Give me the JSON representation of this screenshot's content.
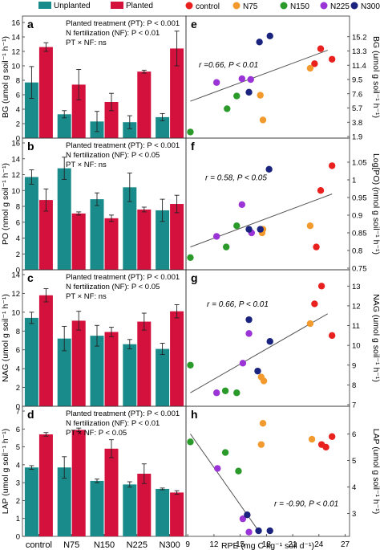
{
  "colors": {
    "unplanted": "#1a8b8b",
    "planted": "#d4103c",
    "control": "#e8211f",
    "N75": "#f39a2e",
    "N150": "#2a9a2a",
    "N225": "#9b34d6",
    "N300": "#1a237e",
    "axis": "#333333",
    "fit_line": "#555555"
  },
  "legend_bar": {
    "unplanted": "Unplanted",
    "planted": "Planted"
  },
  "legend_scatter": [
    "control",
    "N75",
    "N150",
    "N225",
    "N300"
  ],
  "scatter_x_label": "RPE (mg C kg⁻¹ soil d⁻¹)",
  "chart_data": [
    {
      "panel": "a",
      "type": "bar",
      "ylabel": "BG (umol g soil⁻¹ h⁻¹)",
      "categories": [
        "control",
        "N75",
        "N150",
        "N225",
        "N300"
      ],
      "ylim": [
        0,
        16
      ],
      "yticks": [
        0,
        2,
        4,
        6,
        8,
        10,
        12,
        14,
        16
      ],
      "series": [
        {
          "name": "Unplanted",
          "values": [
            7.7,
            3.3,
            2.3,
            2.2,
            2.9
          ],
          "err": [
            2.2,
            0.5,
            1.4,
            0.9,
            0.5
          ]
        },
        {
          "name": "Planted",
          "values": [
            12.6,
            7.4,
            5.0,
            9.2,
            12.4
          ],
          "err": [
            0.6,
            2.1,
            1.2,
            0.2,
            2.4
          ]
        }
      ],
      "stats": [
        "Planted treatment (PT): P < 0.001",
        "N fertilization (NF): P < 0.01",
        "PT × NF: ns"
      ]
    },
    {
      "panel": "b",
      "type": "bar",
      "ylabel": "PO (nmol g soil⁻¹ h⁻¹)",
      "categories": [
        "control",
        "N75",
        "N150",
        "N225",
        "N300"
      ],
      "ylim": [
        0,
        16
      ],
      "yticks": [
        0,
        2,
        4,
        6,
        8,
        10,
        12,
        14,
        16
      ],
      "series": [
        {
          "name": "Unplanted",
          "values": [
            11.7,
            12.8,
            8.9,
            10.4,
            7.5
          ],
          "err": [
            0.9,
            1.4,
            0.8,
            1.8,
            1.4
          ]
        },
        {
          "name": "Planted",
          "values": [
            8.8,
            7.1,
            6.5,
            7.6,
            8.3
          ],
          "err": [
            1.4,
            0.2,
            0.4,
            0.3,
            1.1
          ]
        }
      ],
      "stats": [
        "Planted treatment (PT): P < 0.001",
        "N fertilization (NF): P < 0.05",
        "PT × NF: ns"
      ]
    },
    {
      "panel": "c",
      "type": "bar",
      "ylabel": "NAG (umol g soil⁻¹ h⁻¹)",
      "categories": [
        "control",
        "N75",
        "N150",
        "N225",
        "N300"
      ],
      "ylim": [
        0,
        14
      ],
      "yticks": [
        0,
        2,
        4,
        6,
        8,
        10,
        12,
        14
      ],
      "series": [
        {
          "name": "Unplanted",
          "values": [
            9.4,
            7.2,
            7.5,
            6.6,
            6.1
          ],
          "err": [
            0.6,
            1.3,
            1.1,
            0.5,
            0.6
          ]
        },
        {
          "name": "Planted",
          "values": [
            11.8,
            9.1,
            7.9,
            9.0,
            10.1
          ],
          "err": [
            0.7,
            1.0,
            0.5,
            0.9,
            0.7
          ]
        }
      ],
      "stats": [
        "Planted treatment (PT): P < 0.001",
        "N fertilization (NF): P < 0.05",
        "PT × NF: ns"
      ]
    },
    {
      "panel": "d",
      "type": "bar",
      "ylabel": "LAP (umol g soil⁻¹ h⁻¹)",
      "categories": [
        "control",
        "N75",
        "N150",
        "N225",
        "N300"
      ],
      "ylim": [
        0,
        7
      ],
      "yticks": [
        0,
        1,
        2,
        3,
        4,
        5,
        6,
        7
      ],
      "series": [
        {
          "name": "Unplanted",
          "values": [
            3.85,
            3.85,
            3.1,
            2.9,
            2.65
          ],
          "err": [
            0.1,
            0.6,
            0.1,
            0.15,
            0.05
          ]
        },
        {
          "name": "Planted",
          "values": [
            5.7,
            5.95,
            4.9,
            3.5,
            2.45
          ],
          "err": [
            0.1,
            0.1,
            0.5,
            0.55,
            0.1
          ]
        }
      ],
      "stats": [
        "Planted treatment (PT): P < 0.001",
        "N fertilization (NF): P < 0.01",
        "PT × NF: P < 0.05"
      ]
    },
    {
      "panel": "e",
      "type": "scatter",
      "ylabel": "BG (umol g soil⁻¹ h⁻¹)",
      "ylim": [
        1.9,
        17.1
      ],
      "yticks": [
        1.9,
        3.8,
        5.7,
        7.6,
        9.5,
        11.4,
        13.3,
        15.2
      ],
      "annotation": "r =0.66, P < 0.01",
      "fit": [
        [
          9.3,
          6.6
        ],
        [
          25.0,
          13.4
        ]
      ],
      "points": [
        {
          "group": "control",
          "x": 24.2,
          "y": 13.6
        },
        {
          "group": "control",
          "x": 23.5,
          "y": 11.6
        },
        {
          "group": "control",
          "x": 25.5,
          "y": 12.2
        },
        {
          "group": "N75",
          "x": 17.3,
          "y": 7.4
        },
        {
          "group": "N75",
          "x": 17.6,
          "y": 4.1
        },
        {
          "group": "N75",
          "x": 23.0,
          "y": 11.0
        },
        {
          "group": "N150",
          "x": 9.3,
          "y": 2.5
        },
        {
          "group": "N150",
          "x": 13.5,
          "y": 5.6
        },
        {
          "group": "N150",
          "x": 14.6,
          "y": 7.3
        },
        {
          "group": "N225",
          "x": 12.3,
          "y": 9.1
        },
        {
          "group": "N225",
          "x": 15.2,
          "y": 9.6
        },
        {
          "group": "N225",
          "x": 16.2,
          "y": 9.5
        },
        {
          "group": "N300",
          "x": 16.0,
          "y": 7.8
        },
        {
          "group": "N300",
          "x": 17.2,
          "y": 14.5
        },
        {
          "group": "N300",
          "x": 18.4,
          "y": 15.3
        }
      ]
    },
    {
      "panel": "f",
      "type": "scatter",
      "ylabel": "Log[PO) (nmol g soil⁻¹ h⁻¹)",
      "ylim": [
        0.75,
        1.1
      ],
      "yticks": [
        0.75,
        0.8,
        0.85,
        0.9,
        0.95,
        1.0,
        1.05
      ],
      "annotation": "r = 0.58, P < 0.05",
      "fit": [
        [
          9.3,
          0.81
        ],
        [
          25.5,
          0.96
        ]
      ],
      "points": [
        {
          "group": "control",
          "x": 25.5,
          "y": 1.04
        },
        {
          "group": "control",
          "x": 24.2,
          "y": 0.97
        },
        {
          "group": "control",
          "x": 23.7,
          "y": 0.81
        },
        {
          "group": "N75",
          "x": 17.5,
          "y": 0.85
        },
        {
          "group": "N75",
          "x": 17.6,
          "y": 0.86
        },
        {
          "group": "N75",
          "x": 23.0,
          "y": 0.87
        },
        {
          "group": "N150",
          "x": 9.3,
          "y": 0.78
        },
        {
          "group": "N150",
          "x": 13.4,
          "y": 0.81
        },
        {
          "group": "N150",
          "x": 14.6,
          "y": 0.87
        },
        {
          "group": "N225",
          "x": 12.3,
          "y": 0.84
        },
        {
          "group": "N225",
          "x": 15.2,
          "y": 0.93
        },
        {
          "group": "N225",
          "x": 16.3,
          "y": 0.85
        },
        {
          "group": "N300",
          "x": 16.0,
          "y": 0.86
        },
        {
          "group": "N300",
          "x": 17.3,
          "y": 0.86
        },
        {
          "group": "N300",
          "x": 18.3,
          "y": 1.03
        }
      ]
    },
    {
      "panel": "g",
      "type": "scatter",
      "ylabel": "NAG (umol g soil⁻¹ h⁻¹)",
      "ylim": [
        7,
        13.5
      ],
      "yticks": [
        7,
        8,
        9,
        10,
        11,
        12,
        13
      ],
      "annotation": "r = 0.66, P < 0.01",
      "fit": [
        [
          9.3,
          7.6
        ],
        [
          25.0,
          11.6
        ]
      ],
      "points": [
        {
          "group": "control",
          "x": 24.3,
          "y": 13.0
        },
        {
          "group": "control",
          "x": 23.5,
          "y": 12.1
        },
        {
          "group": "control",
          "x": 25.5,
          "y": 10.5
        },
        {
          "group": "N75",
          "x": 17.4,
          "y": 8.4
        },
        {
          "group": "N75",
          "x": 17.7,
          "y": 8.2
        },
        {
          "group": "N75",
          "x": 23.0,
          "y": 11.1
        },
        {
          "group": "N150",
          "x": 9.3,
          "y": 9.0
        },
        {
          "group": "N150",
          "x": 13.3,
          "y": 7.7
        },
        {
          "group": "N150",
          "x": 14.6,
          "y": 7.6
        },
        {
          "group": "N225",
          "x": 12.3,
          "y": 7.6
        },
        {
          "group": "N225",
          "x": 15.3,
          "y": 9.1
        },
        {
          "group": "N225",
          "x": 16.0,
          "y": 10.6
        },
        {
          "group": "N300",
          "x": 16.0,
          "y": 11.3
        },
        {
          "group": "N300",
          "x": 17.0,
          "y": 8.7
        },
        {
          "group": "N300",
          "x": 18.4,
          "y": 10.2
        }
      ]
    },
    {
      "panel": "h",
      "type": "scatter",
      "ylabel": "LAP (umol g soil⁻¹ h⁻¹)",
      "ylim": [
        2.2,
        6.8
      ],
      "yticks": [
        3,
        4,
        5,
        6
      ],
      "annotation": "r = -0.90, P < 0.01",
      "fit": [
        [
          9.3,
          6.0
        ],
        [
          17.3,
          2.25
        ]
      ],
      "points": [
        {
          "group": "control",
          "x": 24.3,
          "y": 5.6
        },
        {
          "group": "control",
          "x": 24.8,
          "y": 5.5
        },
        {
          "group": "control",
          "x": 25.5,
          "y": 5.9
        },
        {
          "group": "N75",
          "x": 17.4,
          "y": 5.6
        },
        {
          "group": "N75",
          "x": 17.6,
          "y": 6.4
        },
        {
          "group": "N75",
          "x": 23.2,
          "y": 5.8
        },
        {
          "group": "N150",
          "x": 9.3,
          "y": 5.7
        },
        {
          "group": "N150",
          "x": 13.3,
          "y": 5.3
        },
        {
          "group": "N150",
          "x": 14.8,
          "y": 4.6
        },
        {
          "group": "N225",
          "x": 12.4,
          "y": 4.7
        },
        {
          "group": "N225",
          "x": 15.3,
          "y": 2.8
        },
        {
          "group": "N225",
          "x": 16.0,
          "y": 2.3
        },
        {
          "group": "N300",
          "x": 15.8,
          "y": 2.95
        },
        {
          "group": "N300",
          "x": 17.1,
          "y": 2.35
        },
        {
          "group": "N300",
          "x": 18.4,
          "y": 2.35
        }
      ]
    }
  ],
  "scatter_xaxis": {
    "ticks": [
      9,
      12,
      15,
      18,
      21,
      24,
      27
    ],
    "lim": [
      8.8,
      27.5
    ]
  }
}
